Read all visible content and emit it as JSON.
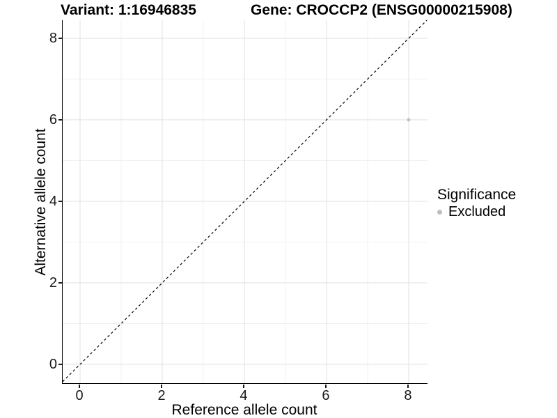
{
  "colors": {
    "background": "#ffffff",
    "grid_major": "#e3e3e3",
    "grid_minor": "#f0f0f0",
    "axis_line": "#000000",
    "tick_text": "#1a1a1a",
    "point": "#c2c2c2",
    "legend_key": "#bdbdbd",
    "reference_line": "#000000"
  },
  "chart_data": {
    "type": "scatter",
    "title_left": "Variant: 1:16946835",
    "title_right": "Gene: CROCCP2 (ENSG00000215908)",
    "xlabel": "Reference allele count",
    "ylabel": "Alternative allele count",
    "x_ticks": [
      0,
      2,
      4,
      6,
      8
    ],
    "y_ticks": [
      0,
      2,
      4,
      6,
      8
    ],
    "x_minor_ticks": [
      1,
      3,
      5,
      7
    ],
    "y_minor_ticks": [
      1,
      3,
      5,
      7
    ],
    "xlim": [
      -0.424,
      8.458
    ],
    "ylim": [
      -0.462,
      8.444
    ],
    "grid": true,
    "points": [
      {
        "x": 8,
        "y": 6,
        "significance": "Excluded"
      }
    ],
    "reference_line": {
      "type": "identity",
      "equation": "y = x",
      "style": "dashed"
    },
    "legend": {
      "title": "Significance",
      "position": "right",
      "items": [
        {
          "label": "Excluded"
        }
      ]
    }
  }
}
